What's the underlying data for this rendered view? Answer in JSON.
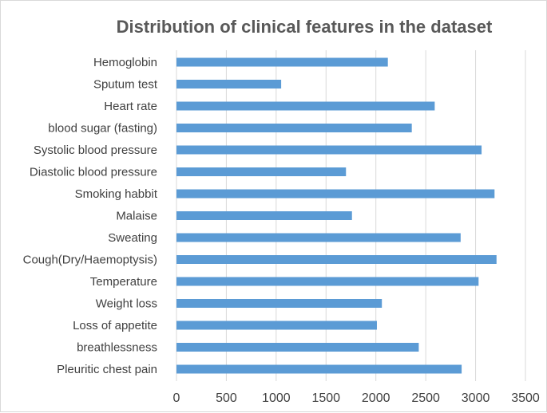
{
  "chart_data": {
    "type": "bar",
    "orientation": "horizontal",
    "title": "Distribution of clinical features in the dataset",
    "xlabel": "",
    "ylabel": "",
    "xlim": [
      0,
      3500
    ],
    "ticks": [
      "0",
      "500",
      "1000",
      "1500",
      "2000",
      "2500",
      "3000",
      "3500"
    ],
    "tick_values": [
      0,
      500,
      1000,
      1500,
      2000,
      2500,
      3000,
      3500
    ],
    "grid": true,
    "legend": "none",
    "bar_color": "#5b9bd5",
    "categories": [
      "Hemoglobin",
      "Sputum test",
      "Heart rate",
      "blood sugar (fasting)",
      "Systolic blood pressure",
      "Diastolic blood pressure",
      "Smoking habbit",
      "Malaise",
      "Sweating",
      "Cough(Dry/Haemoptysis)",
      "Temperature",
      "Weight loss",
      "Loss of appetite",
      "breathlessness",
      "Pleuritic chest pain"
    ],
    "values": [
      2120,
      1050,
      2590,
      2360,
      3060,
      1700,
      3190,
      1760,
      2850,
      3210,
      3030,
      2060,
      2010,
      2430,
      2860
    ]
  }
}
